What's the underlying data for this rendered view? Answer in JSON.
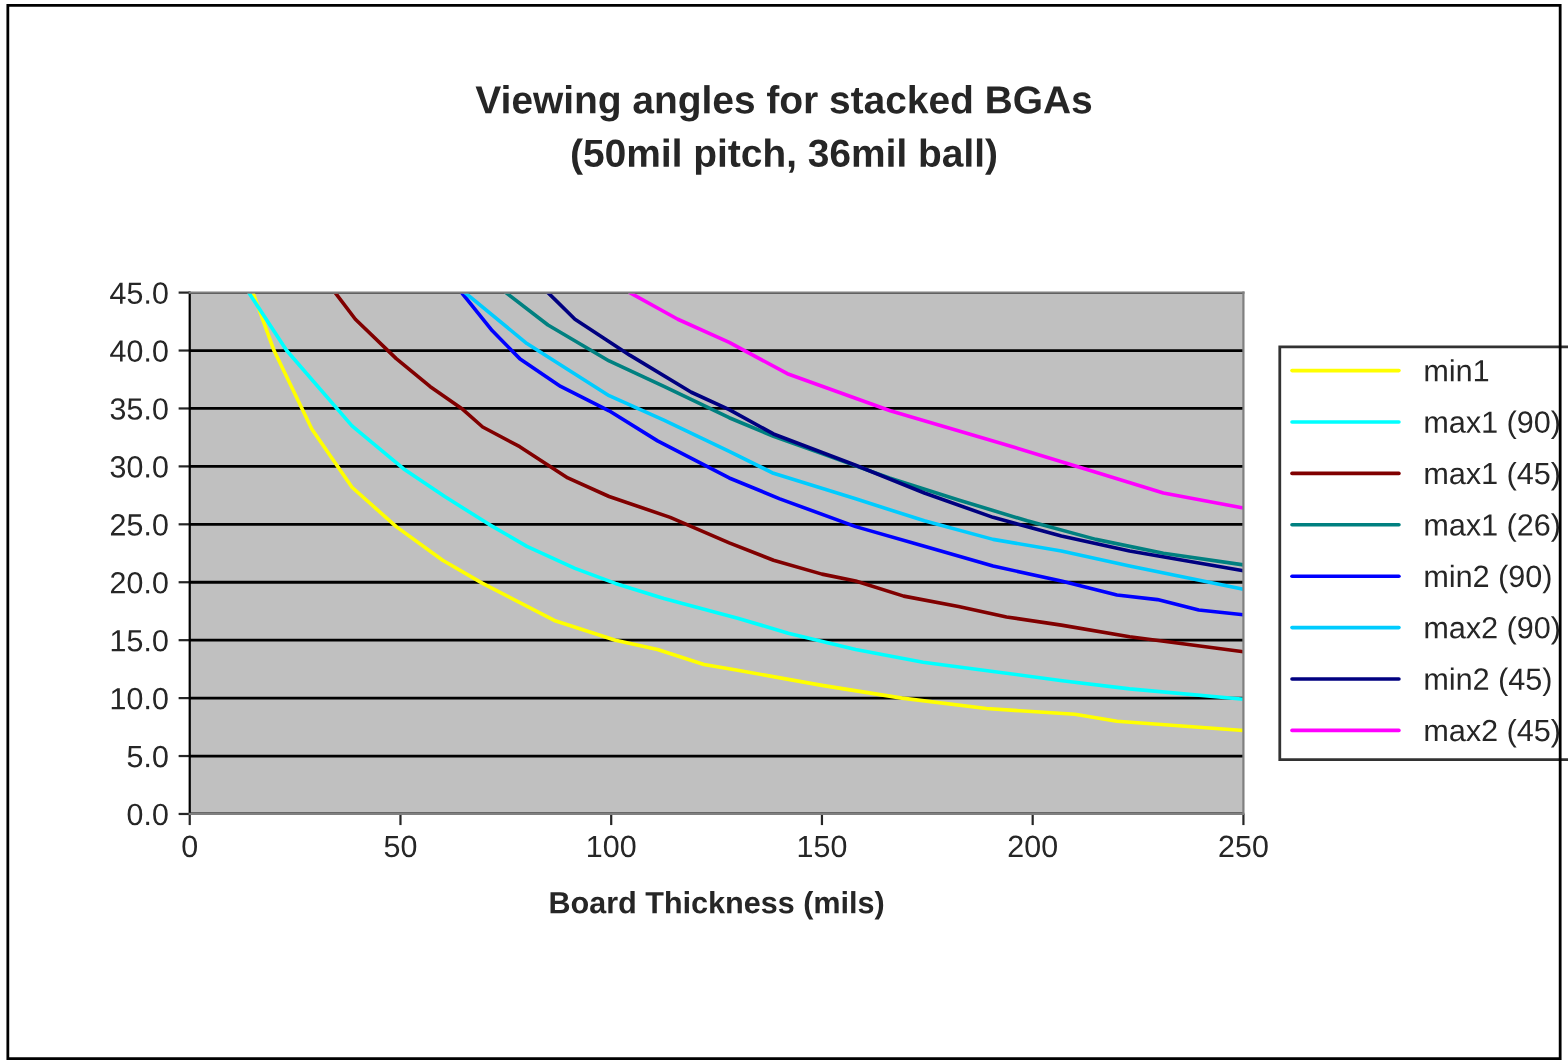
{
  "chart_data": {
    "type": "line",
    "title": "Viewing angles for stacked BGAs\n(50mil pitch, 36mil ball)",
    "xlabel": "Board Thickness (mils)",
    "xlim": [
      0,
      250
    ],
    "xticks": [
      0,
      50,
      100,
      150,
      200,
      250
    ],
    "ylim": [
      0,
      45
    ],
    "yticks": [
      {
        "value": 0,
        "label": "0.0"
      },
      {
        "value": 5,
        "label": "5.0"
      },
      {
        "value": 10,
        "label": "10.0"
      },
      {
        "value": 15,
        "label": "15.0"
      },
      {
        "value": 20,
        "label": "20.0"
      },
      {
        "value": 25,
        "label": "25.0"
      },
      {
        "value": 30,
        "label": "30.0"
      },
      {
        "value": 35,
        "label": "35.0"
      },
      {
        "value": 40,
        "label": "40.0"
      },
      {
        "value": 45,
        "label": "45.0"
      }
    ],
    "grid": "y",
    "legend": "right",
    "marker": "none",
    "line_style": "solid",
    "series": [
      {
        "name": "min1",
        "color": "#ffff00",
        "x": [
          15,
          20,
          29,
          38.5,
          49,
          60,
          69.5,
          86.5,
          101,
          111,
          122,
          130,
          150,
          169,
          189,
          210,
          220,
          250
        ],
        "values": [
          45,
          40,
          33.2,
          28.2,
          24.8,
          21.9,
          19.9,
          16.7,
          15.0,
          14.2,
          12.9,
          12.4,
          11.1,
          10.0,
          9.1,
          8.6,
          8.0,
          7.2
        ]
      },
      {
        "name": "max1 (90)",
        "color": "#00ffff",
        "x": [
          14,
          23,
          38.5,
          50.7,
          60.5,
          71,
          80,
          91.4,
          101,
          112.5,
          130,
          142,
          158,
          174,
          190.6,
          207,
          223,
          250
        ],
        "values": [
          45,
          40,
          33.5,
          29.8,
          27.4,
          25.0,
          23.1,
          21.2,
          19.9,
          18.6,
          16.9,
          15.6,
          14.2,
          13.1,
          12.3,
          11.5,
          10.8,
          9.9
        ]
      },
      {
        "name": "max1 (45)",
        "color": "#800000",
        "x": [
          34.5,
          39.3,
          49,
          57,
          64.5,
          69.5,
          78.3,
          89.7,
          99.5,
          114,
          128,
          138.5,
          150,
          158,
          169.4,
          182.4,
          193.8,
          206.8,
          223,
          250
        ],
        "values": [
          45,
          42.7,
          39.3,
          36.9,
          35.0,
          33.4,
          31.7,
          29.0,
          27.4,
          25.6,
          23.4,
          21.9,
          20.7,
          20.1,
          18.8,
          17.9,
          17.0,
          16.3,
          15.3,
          14.0
        ]
      },
      {
        "name": "max1 (26)",
        "color": "#008080",
        "x": [
          75,
          85,
          99.5,
          112.5,
          128,
          138.5,
          150,
          166,
          182.4,
          198.7,
          215,
          231,
          250
        ],
        "values": [
          45,
          42.2,
          39.1,
          36.9,
          34.2,
          32.6,
          31.1,
          29.0,
          27.1,
          25.3,
          23.7,
          22.5,
          21.5
        ]
      },
      {
        "name": "min2 (90)",
        "color": "#0000ff",
        "x": [
          64.5,
          71.8,
          78.3,
          88,
          99.5,
          111,
          128,
          140,
          158,
          174.3,
          190.6,
          206.8,
          220,
          229.6,
          239.4,
          250
        ],
        "values": [
          45,
          41.7,
          39.3,
          36.9,
          34.8,
          32.2,
          29.0,
          27.2,
          24.8,
          23.1,
          21.4,
          20.1,
          18.9,
          18.5,
          17.6,
          17.2
        ]
      },
      {
        "name": "max2 (90)",
        "color": "#00ccff",
        "x": [
          65.3,
          80,
          99.5,
          112.5,
          128,
          138.5,
          158,
          174.3,
          190.6,
          206.8,
          223,
          250
        ],
        "values": [
          45,
          40.6,
          36.1,
          34.0,
          31.3,
          29.4,
          27.2,
          25.3,
          23.7,
          22.7,
          21.4,
          19.4
        ]
      },
      {
        "name": "min2 (45)",
        "color": "#000080",
        "x": [
          85,
          91.4,
          104.4,
          119,
          128,
          138.5,
          158,
          174.3,
          190.6,
          206.8,
          223,
          250
        ],
        "values": [
          45,
          42.7,
          39.6,
          36.4,
          34.9,
          32.8,
          30.1,
          27.7,
          25.6,
          24.0,
          22.7,
          21.0
        ]
      },
      {
        "name": "max2 (45)",
        "color": "#ff00ff",
        "x": [
          104.4,
          115.8,
          128,
          141.8,
          166.2,
          190.6,
          215,
          231,
          250
        ],
        "values": [
          45,
          42.7,
          40.7,
          38.0,
          34.8,
          32.2,
          29.5,
          27.7,
          26.4
        ]
      }
    ]
  }
}
